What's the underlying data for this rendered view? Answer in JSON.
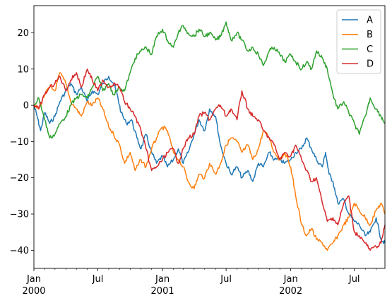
{
  "chart_data": {
    "type": "line",
    "title": "",
    "xlabel": "",
    "ylabel": "",
    "xlim": [
      "2000-01-01",
      "2002-09-26"
    ],
    "ylim": [
      -45,
      27.5
    ],
    "grid": false,
    "legend_position": "top-right",
    "y_ticks": [
      20,
      10,
      0,
      -10,
      -20,
      -30,
      -40
    ],
    "y_tick_labels": [
      "20",
      "10",
      "0",
      "−10",
      "−20",
      "−30",
      "−40"
    ],
    "x_ticks": [
      {
        "date": "2000-01-01",
        "label": "Jan",
        "sublabel": "2000"
      },
      {
        "date": "2000-07-01",
        "label": "Jul",
        "sublabel": ""
      },
      {
        "date": "2001-01-01",
        "label": "Jan",
        "sublabel": "2001"
      },
      {
        "date": "2001-07-01",
        "label": "Jul",
        "sublabel": ""
      },
      {
        "date": "2002-01-01",
        "label": "Jan",
        "sublabel": "2002"
      },
      {
        "date": "2002-07-01",
        "label": "Jul",
        "sublabel": ""
      }
    ],
    "series": [
      {
        "name": "A",
        "color": "#1f77b4",
        "points": [
          [
            "2000-01-01",
            0
          ],
          [
            "2000-01-10",
            -3
          ],
          [
            "2000-01-20",
            -7
          ],
          [
            "2000-02-01",
            -2
          ],
          [
            "2000-02-15",
            -5
          ],
          [
            "2000-03-01",
            -3
          ],
          [
            "2000-03-15",
            1
          ],
          [
            "2000-04-01",
            4
          ],
          [
            "2000-04-15",
            6
          ],
          [
            "2000-05-01",
            3
          ],
          [
            "2000-05-15",
            5
          ],
          [
            "2000-06-01",
            1
          ],
          [
            "2000-06-15",
            4
          ],
          [
            "2000-07-01",
            3
          ],
          [
            "2000-07-15",
            6
          ],
          [
            "2000-08-01",
            8
          ],
          [
            "2000-08-15",
            6
          ],
          [
            "2000-08-25",
            3
          ],
          [
            "2000-09-05",
            -2
          ],
          [
            "2000-09-20",
            -5
          ],
          [
            "2000-10-05",
            -4
          ],
          [
            "2000-10-20",
            -9
          ],
          [
            "2000-11-01",
            -12
          ],
          [
            "2000-11-15",
            -8
          ],
          [
            "2000-12-01",
            -13
          ],
          [
            "2000-12-15",
            -16
          ],
          [
            "2001-01-01",
            -14
          ],
          [
            "2001-01-15",
            -17
          ],
          [
            "2001-02-01",
            -15
          ],
          [
            "2001-02-15",
            -12
          ],
          [
            "2001-03-01",
            -16
          ],
          [
            "2001-03-15",
            -13
          ],
          [
            "2001-04-01",
            -8
          ],
          [
            "2001-04-15",
            -4
          ],
          [
            "2001-05-01",
            -7
          ],
          [
            "2001-05-15",
            -1
          ],
          [
            "2001-06-01",
            -3
          ],
          [
            "2001-06-15",
            -11
          ],
          [
            "2001-07-01",
            -16
          ],
          [
            "2001-07-15",
            -19
          ],
          [
            "2001-08-01",
            -17
          ],
          [
            "2001-08-15",
            -20
          ],
          [
            "2001-09-01",
            -18
          ],
          [
            "2001-09-15",
            -21
          ],
          [
            "2001-10-01",
            -16
          ],
          [
            "2001-10-15",
            -17
          ],
          [
            "2001-11-01",
            -13
          ],
          [
            "2001-11-15",
            -15
          ],
          [
            "2001-12-01",
            -15
          ],
          [
            "2001-12-15",
            -16
          ],
          [
            "2002-01-01",
            -15
          ],
          [
            "2002-01-15",
            -13
          ],
          [
            "2002-02-01",
            -12
          ],
          [
            "2002-02-15",
            -9
          ],
          [
            "2002-03-01",
            -12
          ],
          [
            "2002-03-15",
            -15
          ],
          [
            "2002-04-01",
            -17
          ],
          [
            "2002-04-10",
            -13
          ],
          [
            "2002-04-20",
            -19
          ],
          [
            "2002-05-01",
            -21
          ],
          [
            "2002-05-15",
            -27
          ],
          [
            "2002-06-01",
            -26
          ],
          [
            "2002-06-15",
            -30
          ],
          [
            "2002-07-01",
            -32
          ],
          [
            "2002-07-15",
            -33
          ],
          [
            "2002-08-01",
            -36
          ],
          [
            "2002-08-15",
            -35
          ],
          [
            "2002-09-01",
            -31
          ],
          [
            "2002-09-15",
            -37
          ],
          [
            "2002-09-26",
            -38
          ]
        ]
      },
      {
        "name": "B",
        "color": "#ff7f0e",
        "points": [
          [
            "2000-01-01",
            0
          ],
          [
            "2000-01-15",
            -1
          ],
          [
            "2000-02-01",
            3
          ],
          [
            "2000-02-15",
            5
          ],
          [
            "2000-03-01",
            4
          ],
          [
            "2000-03-15",
            9
          ],
          [
            "2000-04-01",
            6
          ],
          [
            "2000-04-15",
            1
          ],
          [
            "2000-05-01",
            -1
          ],
          [
            "2000-05-15",
            -3
          ],
          [
            "2000-06-01",
            1
          ],
          [
            "2000-06-15",
            0
          ],
          [
            "2000-07-01",
            2
          ],
          [
            "2000-07-15",
            -1
          ],
          [
            "2000-08-01",
            -6
          ],
          [
            "2000-08-15",
            -8
          ],
          [
            "2000-09-01",
            -11
          ],
          [
            "2000-09-15",
            -16
          ],
          [
            "2000-10-01",
            -13
          ],
          [
            "2000-10-15",
            -18
          ],
          [
            "2000-11-01",
            -15
          ],
          [
            "2000-11-15",
            -17
          ],
          [
            "2000-12-01",
            -12
          ],
          [
            "2000-12-15",
            -9
          ],
          [
            "2001-01-01",
            -6
          ],
          [
            "2001-01-15",
            -7
          ],
          [
            "2001-02-01",
            -13
          ],
          [
            "2001-02-15",
            -15
          ],
          [
            "2001-03-01",
            -17
          ],
          [
            "2001-03-15",
            -21
          ],
          [
            "2001-04-01",
            -23
          ],
          [
            "2001-04-15",
            -19
          ],
          [
            "2001-05-01",
            -20
          ],
          [
            "2001-05-15",
            -16
          ],
          [
            "2001-06-01",
            -19
          ],
          [
            "2001-06-15",
            -16
          ],
          [
            "2001-07-01",
            -11
          ],
          [
            "2001-07-15",
            -9
          ],
          [
            "2001-08-01",
            -10
          ],
          [
            "2001-08-15",
            -13
          ],
          [
            "2001-09-01",
            -11
          ],
          [
            "2001-09-15",
            -15
          ],
          [
            "2001-10-01",
            -12
          ],
          [
            "2001-10-15",
            -7
          ],
          [
            "2001-11-01",
            -9
          ],
          [
            "2001-11-15",
            -13
          ],
          [
            "2001-12-01",
            -15
          ],
          [
            "2001-12-15",
            -13
          ],
          [
            "2002-01-01",
            -17
          ],
          [
            "2002-01-15",
            -25
          ],
          [
            "2002-02-01",
            -33
          ],
          [
            "2002-02-15",
            -36
          ],
          [
            "2002-03-01",
            -34
          ],
          [
            "2002-03-15",
            -37
          ],
          [
            "2002-04-01",
            -38
          ],
          [
            "2002-04-15",
            -40
          ],
          [
            "2002-05-01",
            -38
          ],
          [
            "2002-05-15",
            -36
          ],
          [
            "2002-06-01",
            -33
          ],
          [
            "2002-06-15",
            -31
          ],
          [
            "2002-07-01",
            -27
          ],
          [
            "2002-07-15",
            -29
          ],
          [
            "2002-08-01",
            -31
          ],
          [
            "2002-08-15",
            -33
          ],
          [
            "2002-09-01",
            -29
          ],
          [
            "2002-09-15",
            -27
          ],
          [
            "2002-09-26",
            -30
          ]
        ]
      },
      {
        "name": "C",
        "color": "#2ca02c",
        "points": [
          [
            "2000-01-01",
            0
          ],
          [
            "2000-01-15",
            2
          ],
          [
            "2000-02-01",
            -4
          ],
          [
            "2000-02-15",
            -9
          ],
          [
            "2000-03-01",
            -8
          ],
          [
            "2000-03-15",
            -5
          ],
          [
            "2000-04-01",
            -3
          ],
          [
            "2000-04-15",
            0
          ],
          [
            "2000-05-01",
            2
          ],
          [
            "2000-05-15",
            3
          ],
          [
            "2000-06-01",
            2
          ],
          [
            "2000-06-15",
            5
          ],
          [
            "2000-07-01",
            8
          ],
          [
            "2000-07-15",
            4
          ],
          [
            "2000-08-01",
            6
          ],
          [
            "2000-08-15",
            3
          ],
          [
            "2000-09-01",
            5
          ],
          [
            "2000-09-15",
            4
          ],
          [
            "2000-10-01",
            9
          ],
          [
            "2000-10-15",
            13
          ],
          [
            "2000-11-01",
            15
          ],
          [
            "2000-11-15",
            16
          ],
          [
            "2000-12-01",
            14
          ],
          [
            "2000-12-15",
            19
          ],
          [
            "2001-01-01",
            21
          ],
          [
            "2001-01-15",
            18
          ],
          [
            "2001-02-01",
            16
          ],
          [
            "2001-02-15",
            20
          ],
          [
            "2001-03-01",
            22
          ],
          [
            "2001-03-15",
            20
          ],
          [
            "2001-04-01",
            19
          ],
          [
            "2001-04-15",
            21
          ],
          [
            "2001-05-01",
            19
          ],
          [
            "2001-05-15",
            20
          ],
          [
            "2001-06-01",
            18
          ],
          [
            "2001-06-15",
            19
          ],
          [
            "2001-07-01",
            23
          ],
          [
            "2001-07-15",
            18
          ],
          [
            "2001-08-01",
            20
          ],
          [
            "2001-08-15",
            18
          ],
          [
            "2001-09-01",
            15
          ],
          [
            "2001-09-15",
            16
          ],
          [
            "2001-10-01",
            14
          ],
          [
            "2001-10-15",
            11
          ],
          [
            "2001-11-01",
            15
          ],
          [
            "2001-11-15",
            16
          ],
          [
            "2001-12-01",
            14
          ],
          [
            "2001-12-15",
            12
          ],
          [
            "2002-01-01",
            14
          ],
          [
            "2002-01-15",
            12
          ],
          [
            "2002-02-01",
            10
          ],
          [
            "2002-02-15",
            12
          ],
          [
            "2002-03-01",
            10
          ],
          [
            "2002-03-15",
            15
          ],
          [
            "2002-04-01",
            13
          ],
          [
            "2002-04-15",
            10
          ],
          [
            "2002-05-01",
            3
          ],
          [
            "2002-05-15",
            -1
          ],
          [
            "2002-06-01",
            1
          ],
          [
            "2002-06-15",
            -2
          ],
          [
            "2002-07-01",
            -5
          ],
          [
            "2002-07-15",
            -8
          ],
          [
            "2002-08-01",
            -3
          ],
          [
            "2002-08-15",
            2
          ],
          [
            "2002-09-01",
            -1
          ],
          [
            "2002-09-15",
            -3
          ],
          [
            "2002-09-26",
            -5
          ]
        ]
      },
      {
        "name": "D",
        "color": "#d62728",
        "points": [
          [
            "2000-01-01",
            0
          ],
          [
            "2000-01-15",
            -1
          ],
          [
            "2000-02-01",
            3
          ],
          [
            "2000-02-15",
            5
          ],
          [
            "2000-03-01",
            6
          ],
          [
            "2000-03-15",
            8
          ],
          [
            "2000-04-01",
            4
          ],
          [
            "2000-04-15",
            7
          ],
          [
            "2000-05-01",
            9
          ],
          [
            "2000-05-15",
            5
          ],
          [
            "2000-06-01",
            10
          ],
          [
            "2000-06-15",
            7
          ],
          [
            "2000-07-01",
            4
          ],
          [
            "2000-07-15",
            7
          ],
          [
            "2000-08-01",
            5
          ],
          [
            "2000-08-15",
            6
          ],
          [
            "2000-09-01",
            5
          ],
          [
            "2000-09-15",
            1
          ],
          [
            "2000-10-01",
            -1
          ],
          [
            "2000-10-15",
            -3
          ],
          [
            "2000-11-01",
            -7
          ],
          [
            "2000-11-15",
            -12
          ],
          [
            "2000-12-01",
            -18
          ],
          [
            "2000-12-15",
            -17
          ],
          [
            "2001-01-01",
            -15
          ],
          [
            "2001-01-15",
            -13
          ],
          [
            "2001-02-01",
            -12
          ],
          [
            "2001-02-15",
            -16
          ],
          [
            "2001-03-01",
            -12
          ],
          [
            "2001-03-15",
            -9
          ],
          [
            "2001-04-01",
            -8
          ],
          [
            "2001-04-15",
            -3
          ],
          [
            "2001-05-01",
            -2
          ],
          [
            "2001-05-15",
            -4
          ],
          [
            "2001-06-01",
            -1
          ],
          [
            "2001-06-15",
            0
          ],
          [
            "2001-07-01",
            -3
          ],
          [
            "2001-07-15",
            -1
          ],
          [
            "2001-08-01",
            -4
          ],
          [
            "2001-08-15",
            4
          ],
          [
            "2001-09-01",
            -1
          ],
          [
            "2001-09-15",
            -3
          ],
          [
            "2001-10-01",
            -4
          ],
          [
            "2001-10-15",
            -7
          ],
          [
            "2001-11-01",
            -9
          ],
          [
            "2001-11-15",
            -11
          ],
          [
            "2001-12-01",
            -15
          ],
          [
            "2001-12-15",
            -13
          ],
          [
            "2002-01-01",
            -14
          ],
          [
            "2002-01-15",
            -11
          ],
          [
            "2002-02-01",
            -15
          ],
          [
            "2002-02-15",
            -18
          ],
          [
            "2002-03-01",
            -21
          ],
          [
            "2002-03-15",
            -20
          ],
          [
            "2002-04-01",
            -27
          ],
          [
            "2002-04-15",
            -32
          ],
          [
            "2002-05-01",
            -31
          ],
          [
            "2002-05-15",
            -33
          ],
          [
            "2002-06-01",
            -27
          ],
          [
            "2002-06-15",
            -25
          ],
          [
            "2002-07-01",
            -35
          ],
          [
            "2002-07-15",
            -36
          ],
          [
            "2002-08-01",
            -38
          ],
          [
            "2002-08-15",
            -40
          ],
          [
            "2002-09-01",
            -39
          ],
          [
            "2002-09-15",
            -38
          ],
          [
            "2002-09-26",
            -33
          ]
        ]
      }
    ]
  }
}
